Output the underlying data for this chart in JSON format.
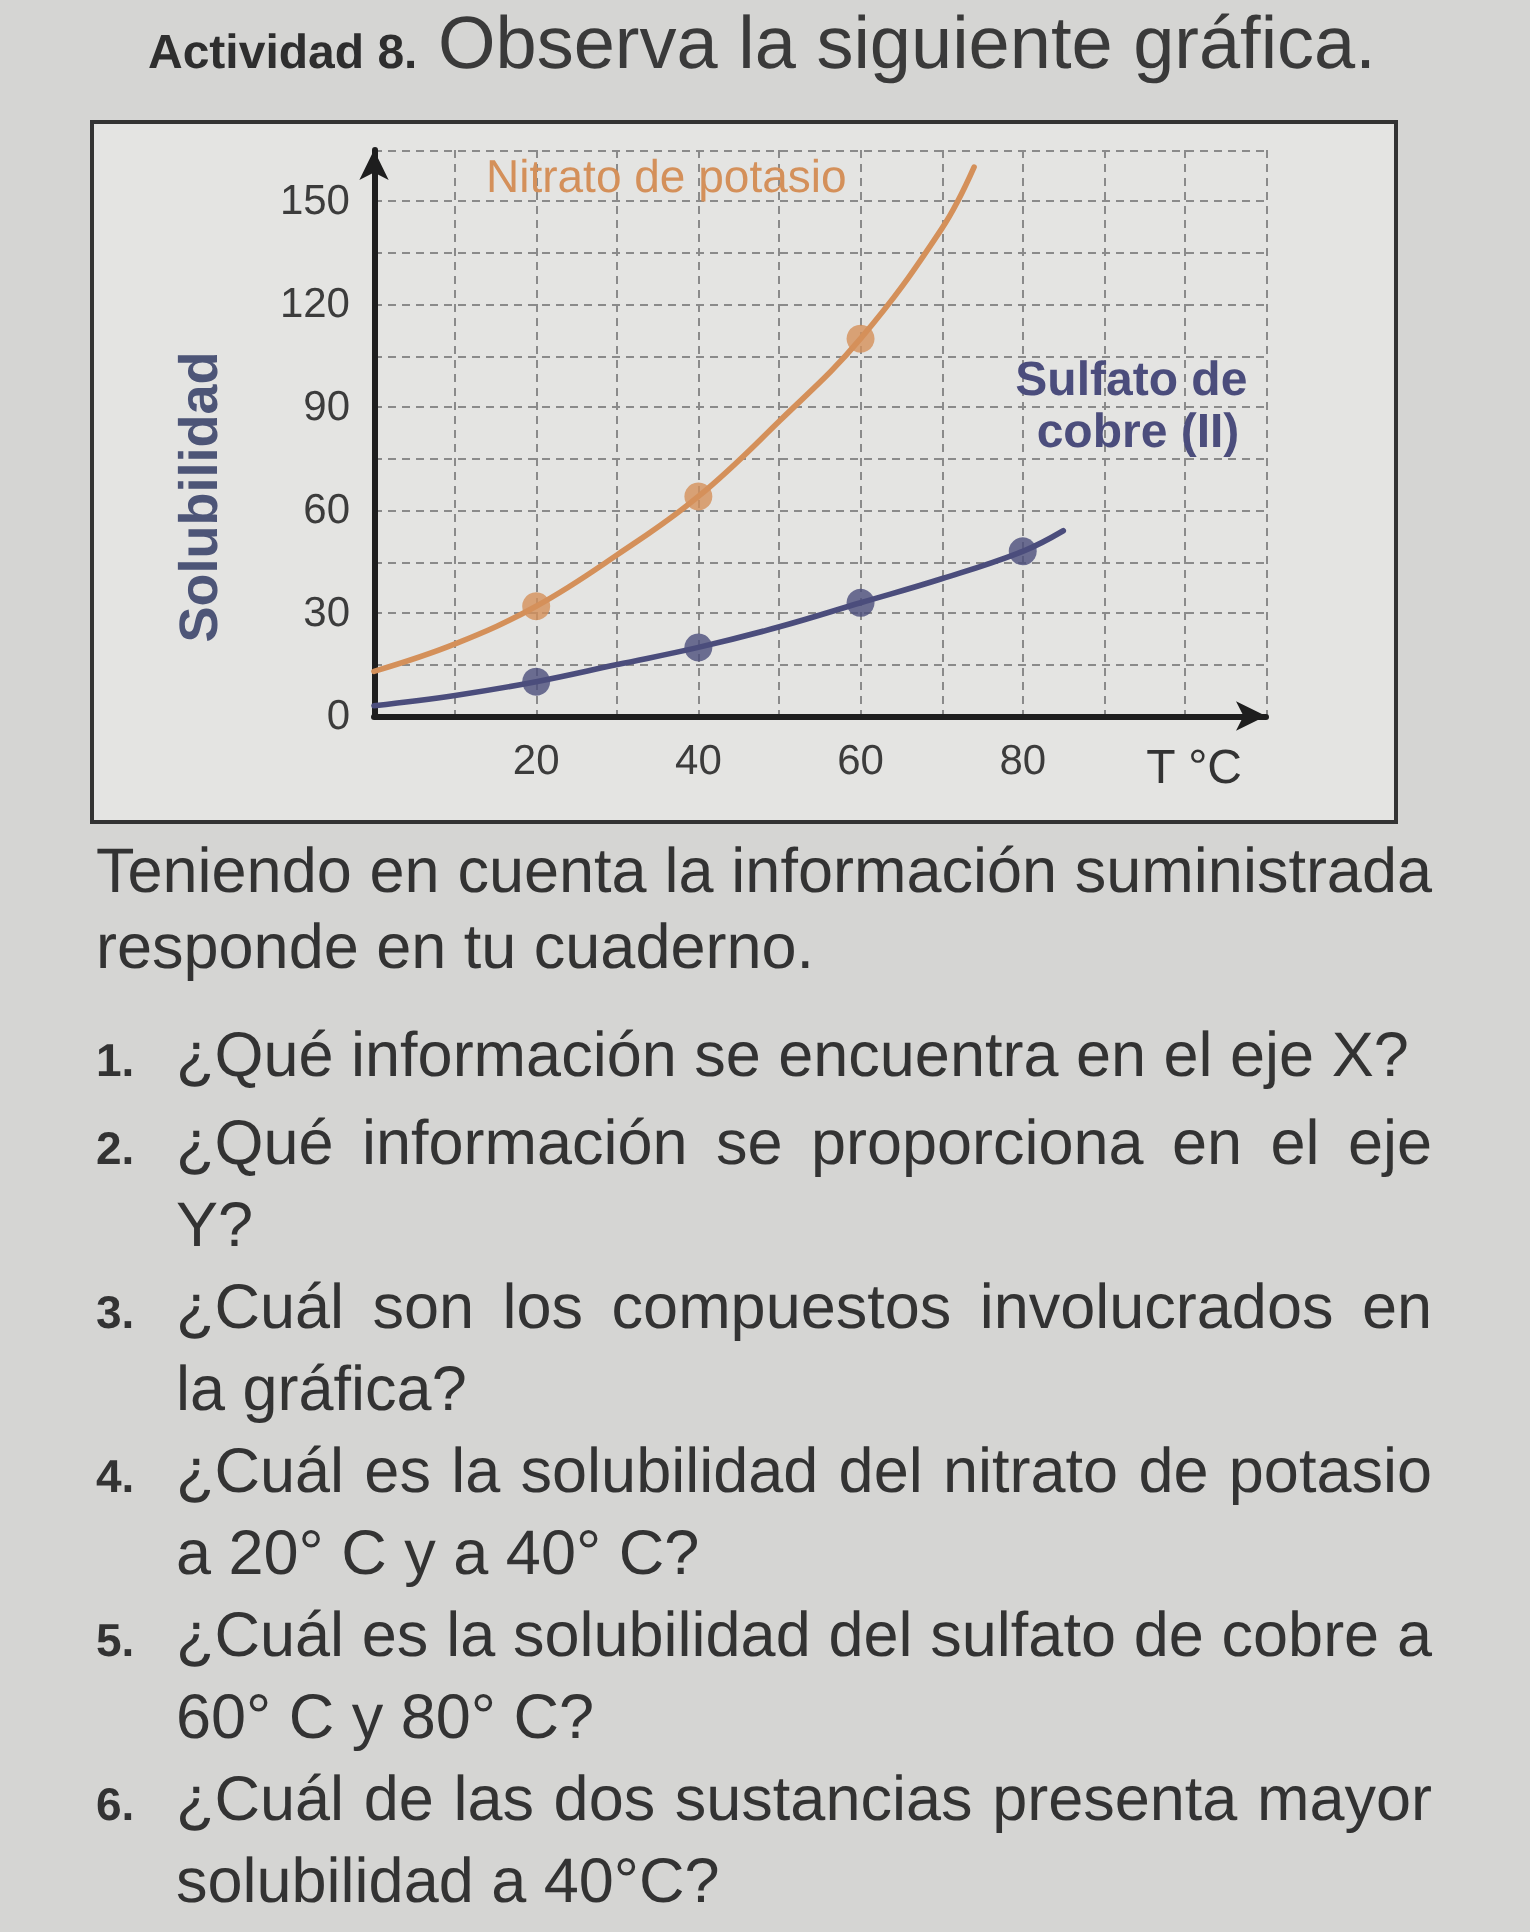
{
  "chart_data": {
    "type": "line",
    "title": "Actividad 8.",
    "subtitle": "Observa la siguiente gráfica.",
    "xlabel": "T °C",
    "ylabel": "Solubilidad",
    "xlim": [
      0,
      110
    ],
    "xticks": [
      {
        "value": 10,
        "label": null
      },
      20,
      {
        "value": 30,
        "label": null
      },
      40,
      {
        "value": 50,
        "label": null
      },
      60,
      {
        "value": 70,
        "label": null
      },
      80,
      {
        "value": 90,
        "label": null
      },
      {
        "value": 100,
        "label": null
      },
      {
        "value": 110,
        "label": null
      }
    ],
    "ylim": [
      0,
      165
    ],
    "yticks": [
      0,
      {
        "value": 15,
        "label": null
      },
      30,
      {
        "value": 45,
        "label": null
      },
      60,
      {
        "value": 75,
        "label": null
      },
      90,
      {
        "value": 105,
        "label": null
      },
      120,
      {
        "value": 135,
        "label": null
      },
      150,
      {
        "value": 165,
        "label": null
      }
    ],
    "grid": true,
    "legend": false,
    "line_style": "solid",
    "series": [
      {
        "name": "Nitrato de potasio",
        "color": "#d4905a",
        "marker": "none",
        "x": [
          0,
          10,
          20,
          30,
          40,
          50,
          60,
          70,
          74
        ],
        "values": [
          13,
          21,
          32,
          47,
          64,
          86,
          110,
          142,
          160
        ]
      },
      {
        "type": "scatter",
        "color": "#d4905a",
        "marker": "circle",
        "x": [
          20,
          40,
          60
        ],
        "values": [
          32,
          64,
          110
        ]
      },
      {
        "name": "Sulfato de cobre (II)",
        "color": "#4b4d7c",
        "marker": "none",
        "x": [
          0,
          10,
          20,
          30,
          40,
          50,
          60,
          70,
          80,
          85
        ],
        "values": [
          3,
          6,
          10,
          15,
          20,
          26,
          33,
          40,
          48,
          54
        ]
      },
      {
        "type": "scatter",
        "color": "#4b4d7c",
        "marker": "circle",
        "x": [
          20,
          40,
          60,
          80
        ],
        "values": [
          10,
          20,
          33,
          48
        ]
      }
    ],
    "annotations": [
      "Teniendo en cuenta la información suministrada responde en tu cuaderno.",
      "1. ¿Qué información se encuentra en el eje X?",
      "2. ¿Qué información se proporciona en el eje Y?",
      "3. ¿Cuál son los compuestos involucrados en la gráfica?",
      "4. ¿Cuál es la solubilidad del nitrato de potasio a 20° C y a 40° C?",
      "5. ¿Cuál es la solubilidad del sulfato de cobre a 60° C y 80° C?",
      "6. ¿Cuál de las dos sustancias presenta mayor solubilidad a 40°C?"
    ]
  }
}
